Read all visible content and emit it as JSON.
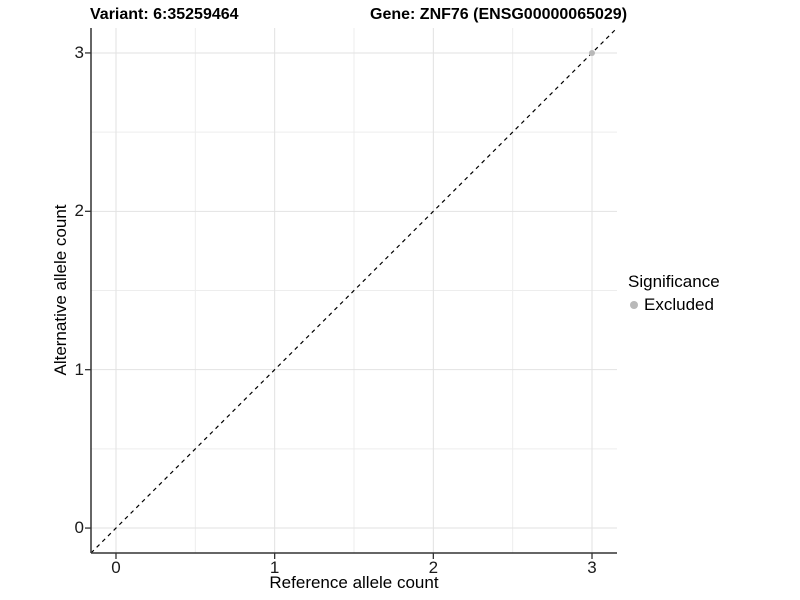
{
  "title": {
    "variant": "Variant: 6:35259464",
    "gene": "Gene: ZNF76 (ENSG00000065029)"
  },
  "chart_data": {
    "type": "scatter",
    "xlabel": "Reference allele count",
    "ylabel": "Alternative allele count",
    "xlim": [
      -0.1575,
      3.1575
    ],
    "ylim": [
      -0.1575,
      3.1575
    ],
    "xticks": [
      0,
      1,
      2,
      3
    ],
    "yticks": [
      0,
      1,
      2,
      3
    ],
    "grid": {
      "major": true,
      "minor": true
    },
    "reference_line": {
      "type": "identity",
      "slope": 1,
      "intercept": 0,
      "style": "dashed",
      "color": "#000000"
    },
    "series": [
      {
        "name": "Excluded",
        "color": "#b9b9b9",
        "points": [
          {
            "x": 3,
            "y": 3
          }
        ]
      }
    ],
    "style": {
      "axis_line_color": "#333333",
      "major_grid_color": "#e2e2e2",
      "minor_grid_color": "#ededed",
      "tick_color": "#333333",
      "point_radius": 3
    }
  },
  "legend": {
    "title": "Significance",
    "items": [
      {
        "label": "Excluded",
        "color": "#b9b9b9"
      }
    ]
  }
}
